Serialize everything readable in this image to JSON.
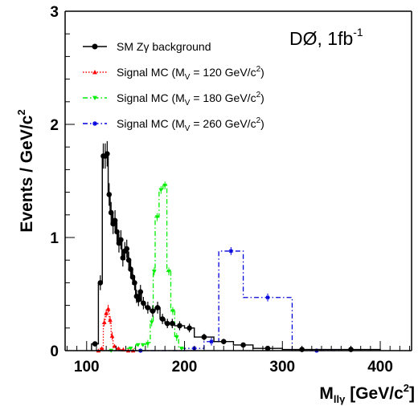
{
  "chart_data": {
    "type": "line",
    "annotation": {
      "main": "DØ, 1fb",
      "sup": "-1"
    },
    "xlabel": {
      "main": "M",
      "sub": "llγ",
      "rest": " [GeV/c",
      "sup": "2",
      "end": "]"
    },
    "ylabel": {
      "main": "Events / GeV/c",
      "sup": "2"
    },
    "xlim": [
      78,
      432
    ],
    "ylim": [
      0,
      3
    ],
    "x_ticks": [
      "100",
      "200",
      "300",
      "400"
    ],
    "y_ticks": [
      "0",
      "1",
      "2",
      "3"
    ],
    "legend_position": "top-left",
    "series": [
      {
        "name": "SM Zγ background",
        "legend_parts": {
          "pre": "SM Zγ background"
        },
        "color": "#000000",
        "style": "solid-step",
        "marker": "circle",
        "edges": [
          105,
          112,
          116,
          118,
          120,
          122,
          124,
          126,
          128,
          130,
          132,
          134,
          136,
          138,
          140,
          142,
          144,
          146,
          148,
          150,
          152,
          154,
          156,
          160,
          165,
          170,
          175,
          180,
          185,
          190,
          200,
          210,
          230,
          250,
          270,
          300,
          340,
          400
        ],
        "values": [
          0.06,
          0.6,
          1.72,
          1.72,
          1.74,
          1.38,
          1.22,
          1.12,
          1.15,
          1.05,
          0.95,
          0.98,
          0.82,
          0.88,
          0.9,
          0.8,
          0.72,
          0.65,
          0.6,
          0.48,
          0.45,
          0.52,
          0.42,
          0.38,
          0.35,
          0.38,
          0.28,
          0.24,
          0.24,
          0.22,
          0.2,
          0.12,
          0.08,
          0.05,
          0.02,
          0.01,
          0.01
        ]
      },
      {
        "name": "Signal MC (M_V = 120 GeV/c²)",
        "legend_parts": {
          "pre": "Signal MC (M",
          "sub": "V",
          "mid": " = 120 GeV/c",
          "sup": "2",
          "post": ")"
        },
        "color": "#ff0000",
        "style": "dotted-step",
        "marker": "triangle-up",
        "edges": [
          110,
          114,
          117,
          119,
          121,
          123,
          125,
          127,
          130,
          135,
          140,
          145,
          150
        ],
        "values": [
          0.0,
          0.02,
          0.25,
          0.33,
          0.37,
          0.27,
          0.13,
          0.04,
          0.02,
          0.01,
          0.0,
          0.0
        ]
      },
      {
        "name": "Signal MC (M_V = 180 GeV/c²)",
        "legend_parts": {
          "pre": "Signal MC (M",
          "sub": "V",
          "mid": " = 180 GeV/c",
          "sup": "2",
          "post": ")"
        },
        "color": "#00ee00",
        "style": "dashdot-step",
        "marker": "triangle-down",
        "edges": [
          110,
          140,
          150,
          155,
          160,
          165,
          168,
          170,
          174,
          178,
          182,
          186,
          190,
          194,
          200
        ],
        "values": [
          0.0,
          0.02,
          0.05,
          0.05,
          0.06,
          0.25,
          0.7,
          1.18,
          1.42,
          1.46,
          0.7,
          0.35,
          0.12,
          0.02
        ]
      },
      {
        "name": "Signal MC (M_V = 260 GeV/c²)",
        "legend_parts": {
          "pre": "Signal MC (M",
          "sub": "V",
          "mid": " = 260 GeV/c",
          "sup": "2",
          "post": ")"
        },
        "color": "#0000dd",
        "style": "dashdot-step",
        "marker": "star",
        "edges": [
          110,
          200,
          220,
          235,
          260,
          310,
          360
        ],
        "values": [
          0.0,
          0.02,
          0.08,
          0.88,
          0.47,
          0.0
        ]
      }
    ]
  }
}
